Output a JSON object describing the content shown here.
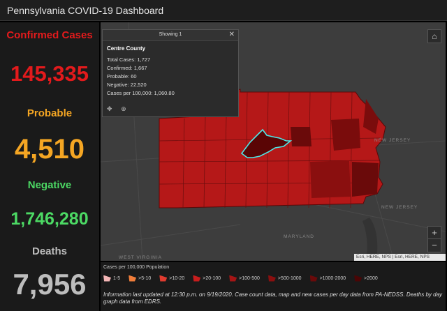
{
  "title": "Pennsylvania COVID-19 Dashboard",
  "stats": {
    "confirmed_label": "Confirmed Cases",
    "confirmed_value": "145,335",
    "probable_label": "Probable",
    "probable_value": "4,510",
    "negative_label": "Negative",
    "negative_value": "1,746,280",
    "deaths_label": "Deaths",
    "deaths_value": "7,956"
  },
  "colors": {
    "confirmed": "#e31a1c",
    "probable": "#f5a623",
    "negative": "#4cd964",
    "deaths": "#bdbdbd"
  },
  "popup": {
    "header": "Showing 1",
    "county": "Centre County",
    "rows": [
      "Total Cases: 1,727",
      "Confirmed: 1,667",
      "Probable: 60",
      "Negative: 22,520",
      "Cases per 100,000: 1,060.80"
    ],
    "close_icon": "close-icon",
    "tool_icons": [
      "move-icon",
      "zoom-to-icon"
    ]
  },
  "map": {
    "labels": {
      "new_jersey_1": "NEW JERSEY",
      "new_jersey_2": "NEW JERSEY",
      "maryland": "MARYLAND",
      "west_virginia": "WEST VIRGINIA"
    },
    "attribution": "Esri, HERE, NPS | Esri, HERE, NPS",
    "zoom_in": "+",
    "zoom_out": "−",
    "home_icon": "home-icon"
  },
  "legend": {
    "title": "Cases per 100,000 Population",
    "items": [
      {
        "label": "1-5",
        "color": "#f4b6b6"
      },
      {
        "label": ">5-10",
        "color": "#f07d3a"
      },
      {
        "label": ">10-20",
        "color": "#e03b2f"
      },
      {
        "label": ">20-100",
        "color": "#c81d1d"
      },
      {
        "label": ">100-500",
        "color": "#a51515"
      },
      {
        "label": ">500-1000",
        "color": "#8a0f0f"
      },
      {
        "label": ">1000-2000",
        "color": "#6a0a0a"
      },
      {
        "label": ">2000",
        "color": "#4a0505"
      }
    ],
    "note": "Information last updated at 12:30 p.m. on 9/19/2020. Case count data, map and new cases per day data from PA-NEDSS. Deaths by day graph data from EDRS."
  }
}
